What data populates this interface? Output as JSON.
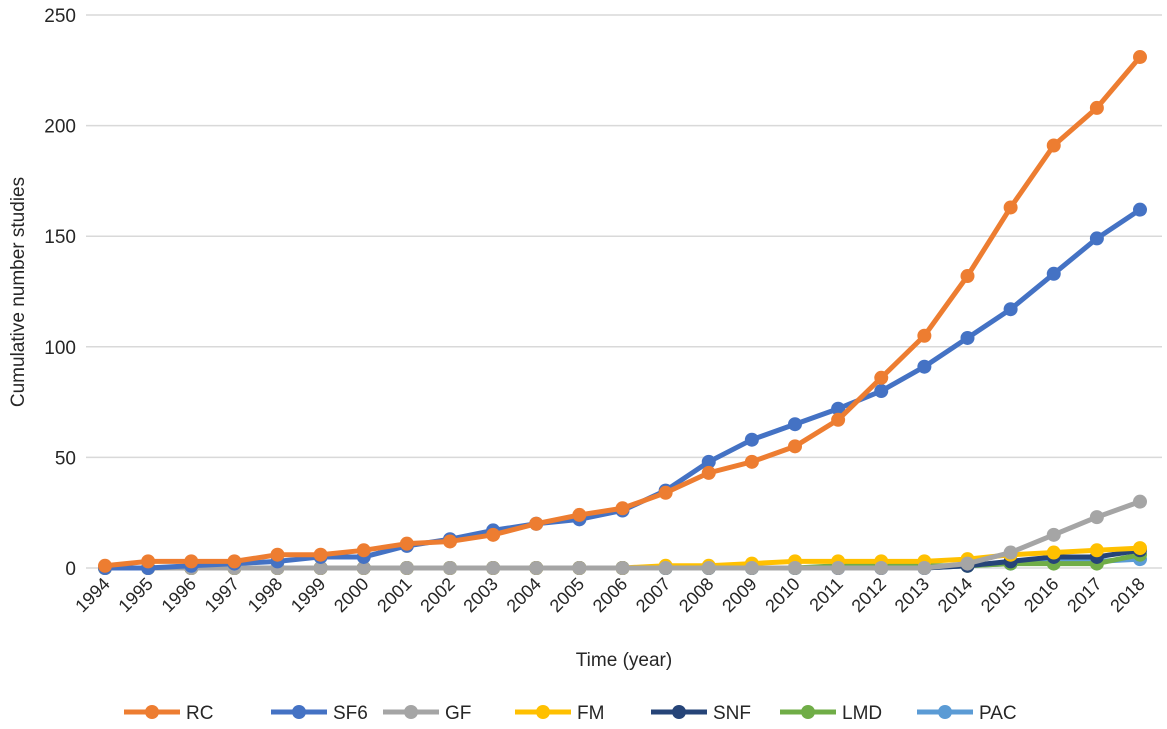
{
  "chart_data": {
    "type": "line",
    "title": "",
    "xlabel": "Time (year)",
    "ylabel": "Cumulative number studies",
    "ylim": [
      0,
      250
    ],
    "yticks": [
      0,
      50,
      100,
      150,
      200,
      250
    ],
    "grid": "horizontal",
    "legend_position": "bottom",
    "categories": [
      "1994",
      "1995",
      "1996",
      "1997",
      "1998",
      "1999",
      "2000",
      "2001",
      "2002",
      "2003",
      "2004",
      "2005",
      "2006",
      "2007",
      "2008",
      "2009",
      "2010",
      "2011",
      "2012",
      "2013",
      "2014",
      "2015",
      "2016",
      "2017",
      "2018"
    ],
    "series": [
      {
        "name": "RC",
        "color": "#ED7D31",
        "values": [
          1,
          3,
          3,
          3,
          6,
          6,
          8,
          11,
          12,
          15,
          20,
          24,
          27,
          34,
          43,
          48,
          55,
          67,
          86,
          105,
          132,
          163,
          191,
          208,
          231
        ]
      },
      {
        "name": "SF6",
        "color": "#4472C4",
        "values": [
          0,
          0,
          1,
          2,
          3,
          5,
          5,
          10,
          13,
          17,
          20,
          22,
          26,
          35,
          48,
          58,
          65,
          72,
          80,
          91,
          104,
          117,
          133,
          149,
          162
        ]
      },
      {
        "name": "GF",
        "color": "#A5A5A5",
        "values": [
          0,
          0,
          0,
          0,
          0,
          0,
          0,
          0,
          0,
          0,
          0,
          0,
          0,
          0,
          0,
          0,
          0,
          0,
          0,
          0,
          2,
          7,
          15,
          23,
          30
        ]
      },
      {
        "name": "FM",
        "color": "#FFC000",
        "values": [
          0,
          0,
          0,
          0,
          0,
          0,
          0,
          0,
          0,
          0,
          0,
          0,
          0,
          1,
          1,
          2,
          3,
          3,
          3,
          3,
          4,
          6,
          7,
          8,
          9
        ]
      },
      {
        "name": "SNF",
        "color": "#264478",
        "values": [
          0,
          0,
          0,
          0,
          0,
          0,
          0,
          0,
          0,
          0,
          0,
          0,
          0,
          0,
          0,
          0,
          0,
          0,
          0,
          0,
          1,
          3,
          5,
          5,
          8
        ]
      },
      {
        "name": "LMD",
        "color": "#70AD47",
        "values": [
          0,
          0,
          0,
          0,
          0,
          0,
          0,
          0,
          0,
          0,
          0,
          0,
          0,
          0,
          0,
          0,
          0,
          1,
          1,
          1,
          1,
          2,
          2,
          2,
          6
        ]
      },
      {
        "name": "PAC",
        "color": "#5B9BD5",
        "values": [
          0,
          0,
          0,
          0,
          0,
          0,
          0,
          0,
          0,
          0,
          0,
          0,
          0,
          0,
          0,
          0,
          0,
          0,
          0,
          0,
          1,
          2,
          3,
          3,
          4
        ]
      }
    ]
  }
}
